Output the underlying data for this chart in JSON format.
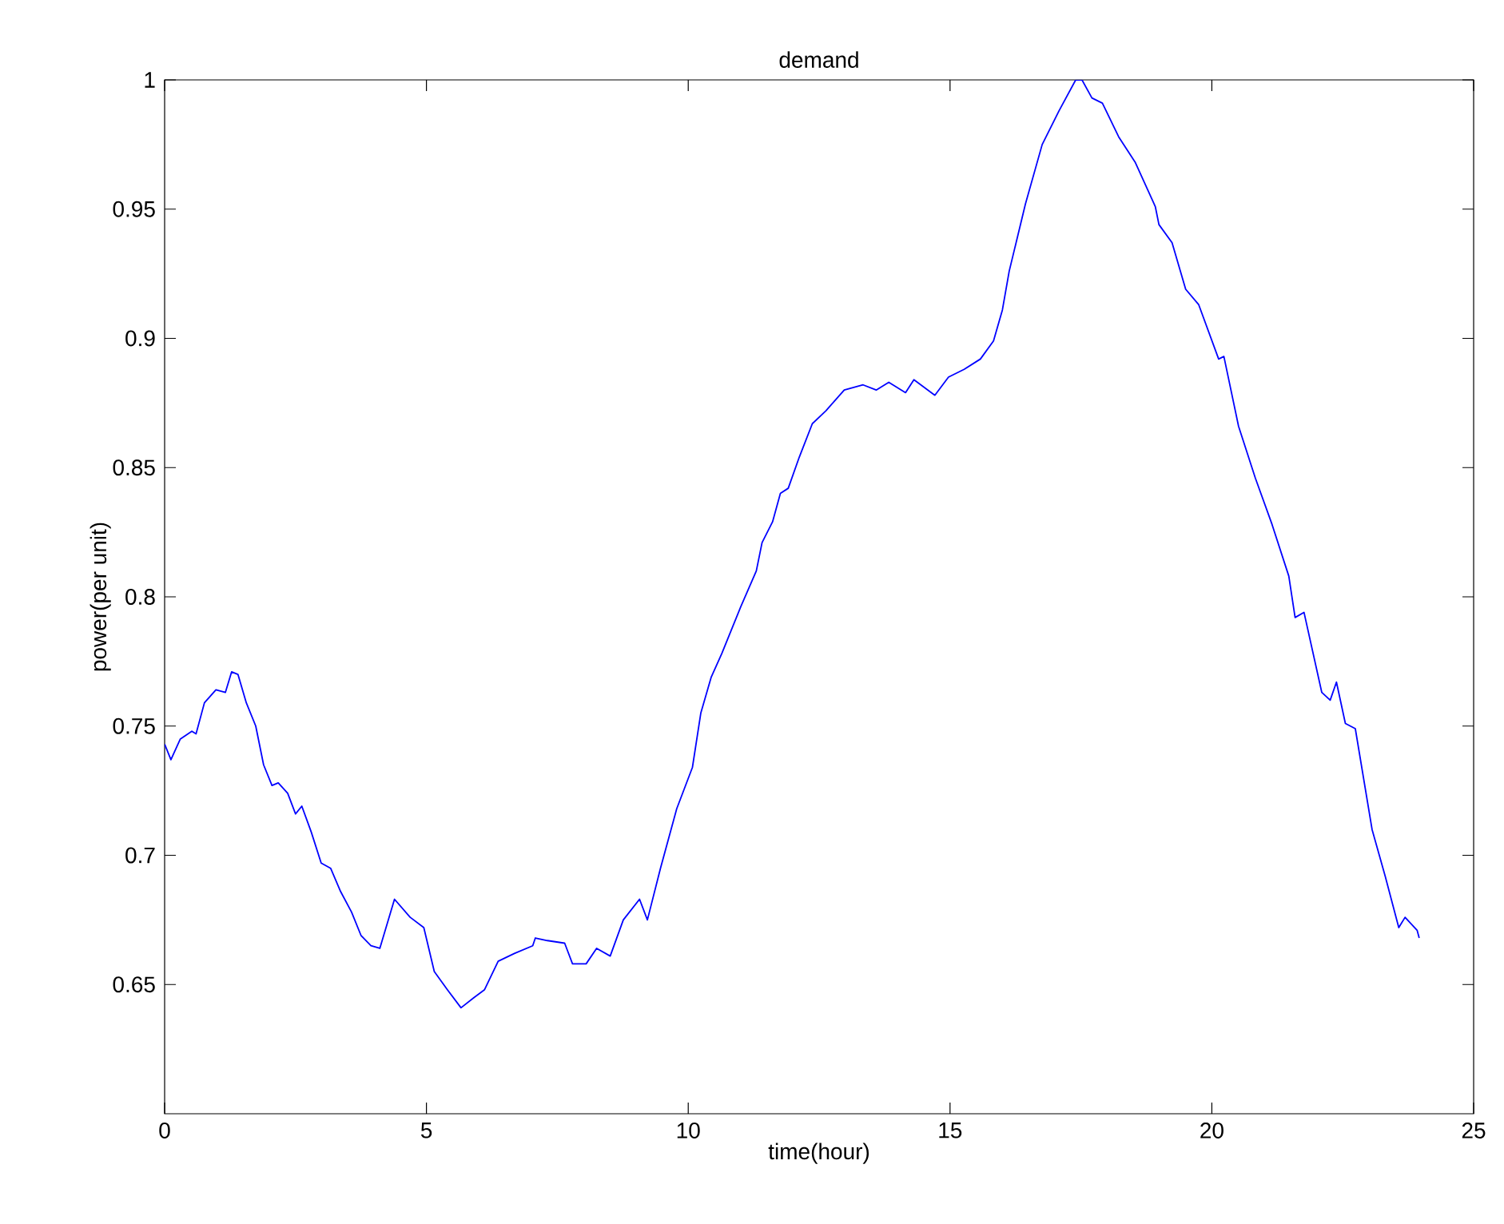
{
  "chart_data": {
    "type": "line",
    "title": "demand",
    "xlabel": "time(hour)",
    "ylabel": "power(per unit)",
    "xlim": [
      0,
      25
    ],
    "xticks": [
      0,
      5,
      10,
      15,
      20,
      25
    ],
    "ylim": [
      0.6,
      1
    ],
    "yticks": [
      0.65,
      0.7,
      0.75,
      0.8,
      0.85,
      0.9,
      0.95,
      1
    ],
    "marker": "none",
    "line_style": "solid",
    "series": [
      {
        "color": "#0000ff",
        "x": [
          0,
          0.12,
          0.3,
          0.52,
          0.6,
          0.76,
          0.98,
          1.16,
          1.28,
          1.4,
          1.56,
          1.74,
          1.89,
          2.05,
          2.17,
          2.35,
          2.5,
          2.62,
          2.8,
          2.99,
          3.17,
          3.36,
          3.57,
          3.75,
          3.94,
          4.11,
          4.39,
          4.69,
          4.95,
          5.15,
          5.4,
          5.66,
          5.91,
          6.11,
          6.37,
          6.68,
          7.03,
          7.08,
          7.31,
          7.64,
          7.79,
          8.05,
          8.25,
          8.51,
          8.76,
          9.07,
          9.22,
          9.47,
          9.78,
          10.08,
          10.24,
          10.44,
          10.64,
          11.0,
          11.3,
          11.41,
          11.61,
          11.76,
          11.91,
          12.12,
          12.37,
          12.63,
          12.98,
          13.34,
          13.59,
          13.83,
          14.15,
          14.31,
          14.51,
          14.71,
          14.97,
          15.27,
          15.58,
          15.83,
          16.0,
          16.13,
          16.44,
          16.76,
          17.08,
          17.4,
          17.52,
          17.71,
          17.91,
          18.22,
          18.54,
          18.92,
          18.99,
          19.24,
          19.5,
          19.75,
          20.13,
          20.23,
          20.51,
          20.83,
          21.15,
          21.47,
          21.59,
          21.76,
          22.1,
          22.26,
          22.38,
          22.55,
          22.74,
          23.06,
          23.31,
          23.57,
          23.69,
          23.92,
          23.96
        ],
        "values": [
          0.743,
          0.737,
          0.745,
          0.748,
          0.747,
          0.759,
          0.764,
          0.763,
          0.771,
          0.77,
          0.759,
          0.75,
          0.735,
          0.727,
          0.728,
          0.724,
          0.716,
          0.719,
          0.709,
          0.697,
          0.695,
          0.686,
          0.678,
          0.669,
          0.665,
          0.664,
          0.683,
          0.676,
          0.672,
          0.655,
          0.648,
          0.641,
          0.645,
          0.648,
          0.659,
          0.662,
          0.665,
          0.668,
          0.667,
          0.666,
          0.658,
          0.658,
          0.664,
          0.661,
          0.675,
          0.683,
          0.675,
          0.695,
          0.718,
          0.734,
          0.755,
          0.769,
          0.778,
          0.796,
          0.81,
          0.821,
          0.829,
          0.84,
          0.842,
          0.854,
          0.867,
          0.872,
          0.88,
          0.882,
          0.88,
          0.883,
          0.879,
          0.884,
          0.881,
          0.878,
          0.885,
          0.888,
          0.892,
          0.899,
          0.911,
          0.926,
          0.952,
          0.975,
          0.988,
          1.0,
          1.0,
          0.993,
          0.991,
          0.978,
          0.968,
          0.951,
          0.944,
          0.937,
          0.919,
          0.913,
          0.892,
          0.893,
          0.866,
          0.846,
          0.828,
          0.808,
          0.792,
          0.794,
          0.763,
          0.76,
          0.767,
          0.751,
          0.749,
          0.71,
          0.692,
          0.672,
          0.676,
          0.671,
          0.668
        ]
      }
    ]
  }
}
